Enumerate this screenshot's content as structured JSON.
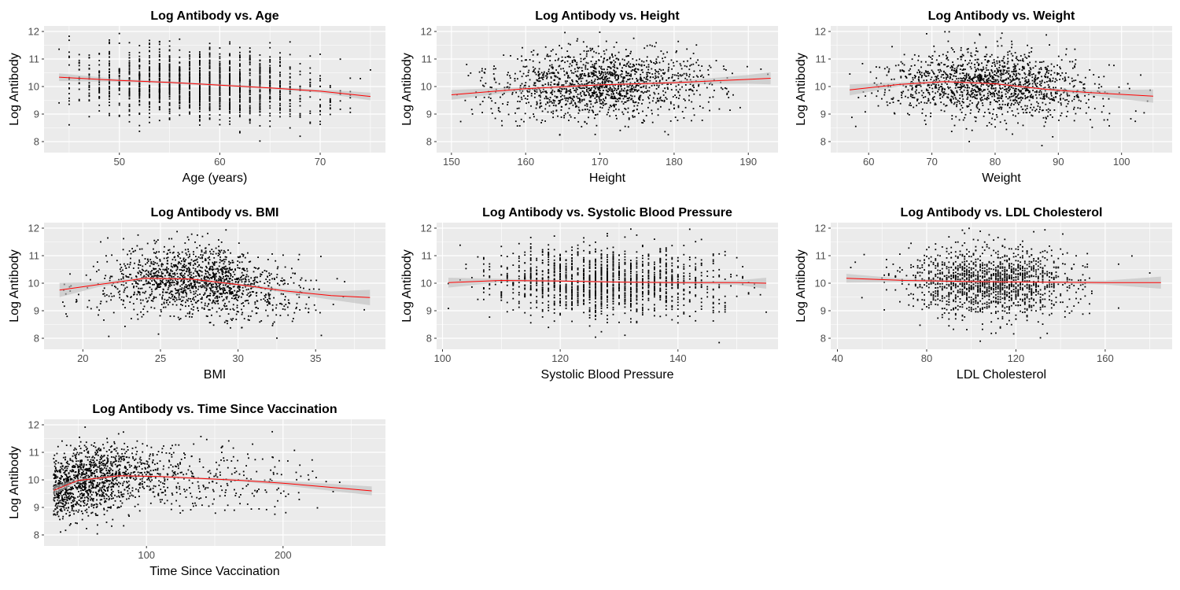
{
  "figure": {
    "panel_background": "#ebebeb",
    "grid_color": "#ffffff",
    "point_color": "#000000",
    "smooth_color": "#ff0000",
    "band_color": "#bebebe"
  },
  "chart_data": [
    {
      "type": "scatter",
      "title": "Log Antibody vs. Age",
      "xlabel": "Age (years)",
      "ylabel": "Log Antibody",
      "xlim": [
        42.5,
        76.5
      ],
      "ylim": [
        7.6,
        12.2
      ],
      "xticks": [
        50,
        60,
        70
      ],
      "yticks": [
        8,
        9,
        10,
        11,
        12
      ],
      "grid": true,
      "x_integer": true,
      "x_center": 58,
      "x_sd": 6.5,
      "x_min": 44,
      "x_max": 75,
      "trend": {
        "x": [
          44,
          50,
          55,
          60,
          65,
          70,
          75
        ],
        "y": [
          10.34,
          10.22,
          10.15,
          10.05,
          9.95,
          9.83,
          9.64
        ]
      },
      "band": [
        0.14,
        0.05,
        0.04,
        0.04,
        0.04,
        0.06,
        0.14
      ]
    },
    {
      "type": "scatter",
      "title": "Log Antibody vs. Height",
      "xlabel": "Height",
      "ylabel": "Log Antibody",
      "xlim": [
        148,
        194
      ],
      "ylim": [
        7.6,
        12.2
      ],
      "xticks": [
        150,
        160,
        170,
        180,
        190
      ],
      "yticks": [
        8,
        9,
        10,
        11,
        12
      ],
      "grid": true,
      "x_integer": false,
      "x_center": 170,
      "x_sd": 7,
      "x_min": 150,
      "x_max": 193,
      "trend": {
        "x": [
          150,
          160,
          170,
          180,
          190,
          193
        ],
        "y": [
          9.7,
          9.92,
          10.06,
          10.14,
          10.26,
          10.3
        ]
      },
      "band": [
        0.18,
        0.06,
        0.03,
        0.05,
        0.16,
        0.22
      ]
    },
    {
      "type": "scatter",
      "title": "Log Antibody vs. Weight",
      "xlabel": "Weight",
      "ylabel": "Log Antibody",
      "xlim": [
        54,
        108
      ],
      "ylim": [
        7.6,
        12.2
      ],
      "xticks": [
        60,
        70,
        80,
        90,
        100
      ],
      "yticks": [
        8,
        9,
        10,
        11,
        12
      ],
      "grid": true,
      "x_integer": false,
      "x_center": 79,
      "x_sd": 8.5,
      "x_min": 57,
      "x_max": 105,
      "trend": {
        "x": [
          57,
          65,
          72,
          80,
          88,
          95,
          105
        ],
        "y": [
          9.88,
          10.08,
          10.18,
          10.1,
          9.9,
          9.78,
          9.65
        ]
      },
      "band": [
        0.2,
        0.07,
        0.04,
        0.03,
        0.05,
        0.09,
        0.24
      ]
    },
    {
      "type": "scatter",
      "title": "Log Antibody vs. BMI",
      "xlabel": "BMI",
      "ylabel": "Log Antibody",
      "xlim": [
        17.5,
        39.5
      ],
      "ylim": [
        7.6,
        12.2
      ],
      "xticks": [
        20,
        25,
        30,
        35
      ],
      "yticks": [
        8,
        9,
        10,
        11,
        12
      ],
      "grid": true,
      "x_integer": false,
      "x_center": 27.5,
      "x_sd": 3.2,
      "x_min": 18.5,
      "x_max": 38.5,
      "trend": {
        "x": [
          18.5,
          21,
          24,
          27,
          30,
          33,
          36,
          38.5
        ],
        "y": [
          9.75,
          9.95,
          10.18,
          10.15,
          9.95,
          9.72,
          9.55,
          9.48
        ]
      },
      "band": [
        0.26,
        0.09,
        0.04,
        0.03,
        0.04,
        0.07,
        0.15,
        0.28
      ]
    },
    {
      "type": "scatter",
      "title": "Log Antibody vs. Systolic Blood Pressure",
      "xlabel": "Systolic Blood Pressure",
      "ylabel": "Log Antibody",
      "xlim": [
        99,
        157
      ],
      "ylim": [
        7.6,
        12.2
      ],
      "xticks": [
        100,
        120,
        140
      ],
      "yticks": [
        8,
        9,
        10,
        11,
        12
      ],
      "grid": true,
      "x_integer": true,
      "x_center": 128,
      "x_sd": 10,
      "x_min": 101,
      "x_max": 155,
      "trend": {
        "x": [
          101,
          110,
          120,
          130,
          140,
          150,
          155
        ],
        "y": [
          10.02,
          10.1,
          10.08,
          10.04,
          10.02,
          10.02,
          10.0
        ]
      },
      "band": [
        0.18,
        0.06,
        0.03,
        0.03,
        0.04,
        0.08,
        0.2
      ]
    },
    {
      "type": "scatter",
      "title": "Log Antibody vs. LDL Cholesterol",
      "xlabel": "LDL Cholesterol",
      "ylabel": "Log Antibody",
      "xlim": [
        37,
        190
      ],
      "ylim": [
        7.6,
        12.2
      ],
      "xticks": [
        40,
        80,
        120,
        160
      ],
      "yticks": [
        8,
        9,
        10,
        11,
        12
      ],
      "grid": true,
      "x_integer": true,
      "x_center": 108,
      "x_sd": 19,
      "x_min": 44,
      "x_max": 185,
      "trend": {
        "x": [
          44,
          70,
          100,
          130,
          160,
          185
        ],
        "y": [
          10.18,
          10.1,
          10.06,
          10.04,
          10.02,
          10.02
        ]
      },
      "band": [
        0.16,
        0.06,
        0.03,
        0.03,
        0.07,
        0.22
      ]
    },
    {
      "type": "scatter",
      "title": "Log Antibody vs. Time Since Vaccination",
      "xlabel": "Time Since Vaccination",
      "ylabel": "Log Antibody",
      "xlim": [
        25,
        275
      ],
      "ylim": [
        7.6,
        12.2
      ],
      "xticks": [
        100,
        200
      ],
      "yticks": [
        8,
        9,
        10,
        11,
        12
      ],
      "grid": true,
      "x_integer": false,
      "x_skew": true,
      "x_center": 100,
      "x_sd": 40,
      "x_min": 32,
      "x_max": 265,
      "trend": {
        "x": [
          32,
          50,
          80,
          110,
          140,
          170,
          200,
          230,
          265
        ],
        "y": [
          9.62,
          9.98,
          10.15,
          10.12,
          10.05,
          9.98,
          9.88,
          9.75,
          9.6
        ]
      },
      "band": [
        0.16,
        0.06,
        0.03,
        0.03,
        0.04,
        0.05,
        0.08,
        0.12,
        0.16
      ]
    }
  ]
}
